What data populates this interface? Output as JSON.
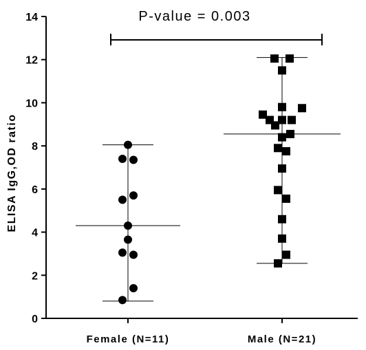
{
  "chart_data": {
    "type": "scatter",
    "ylabel": "ELISA IgG,OD ratio",
    "ylim": [
      0,
      14
    ],
    "yticks": [
      "0",
      "2",
      "4",
      "6",
      "8",
      "10",
      "12",
      "14"
    ],
    "categories": [
      "Female (N=11)",
      "Male (N=21)"
    ],
    "annotation": "P-value = 0.003",
    "grid": false,
    "series": [
      {
        "marker": "circle",
        "color": "#000000",
        "points": [
          {
            "offset": 0.0,
            "y": 8.05
          },
          {
            "offset": -0.4,
            "y": 7.4
          },
          {
            "offset": 0.4,
            "y": 7.35
          },
          {
            "offset": 0.4,
            "y": 5.7
          },
          {
            "offset": -0.4,
            "y": 5.5
          },
          {
            "offset": 0.0,
            "y": 4.3
          },
          {
            "offset": 0.0,
            "y": 3.65
          },
          {
            "offset": -0.4,
            "y": 3.05
          },
          {
            "offset": 0.4,
            "y": 2.95
          },
          {
            "offset": 0.4,
            "y": 1.4
          },
          {
            "offset": -0.4,
            "y": 0.85
          }
        ],
        "mean": 4.3,
        "range": [
          0.8,
          8.05
        ]
      },
      {
        "marker": "square",
        "color": "#000000",
        "points": [
          {
            "offset": -0.55,
            "y": 12.05
          },
          {
            "offset": 0.55,
            "y": 12.05
          },
          {
            "offset": 0.0,
            "y": 11.5
          },
          {
            "offset": 0.0,
            "y": 9.8
          },
          {
            "offset": -1.4,
            "y": 9.45
          },
          {
            "offset": 1.45,
            "y": 9.75
          },
          {
            "offset": -0.9,
            "y": 9.2
          },
          {
            "offset": 0.0,
            "y": 9.2
          },
          {
            "offset": 0.7,
            "y": 9.2
          },
          {
            "offset": -0.5,
            "y": 8.95
          },
          {
            "offset": 0.0,
            "y": 8.4
          },
          {
            "offset": 0.6,
            "y": 8.55
          },
          {
            "offset": -0.3,
            "y": 7.9
          },
          {
            "offset": 0.3,
            "y": 7.75
          },
          {
            "offset": 0.0,
            "y": 6.95
          },
          {
            "offset": -0.3,
            "y": 5.95
          },
          {
            "offset": 0.3,
            "y": 5.55
          },
          {
            "offset": 0.0,
            "y": 4.6
          },
          {
            "offset": 0.0,
            "y": 3.7
          },
          {
            "offset": 0.3,
            "y": 2.95
          },
          {
            "offset": -0.3,
            "y": 2.55
          }
        ],
        "mean": 8.55,
        "range": [
          2.55,
          12.1
        ]
      }
    ]
  }
}
